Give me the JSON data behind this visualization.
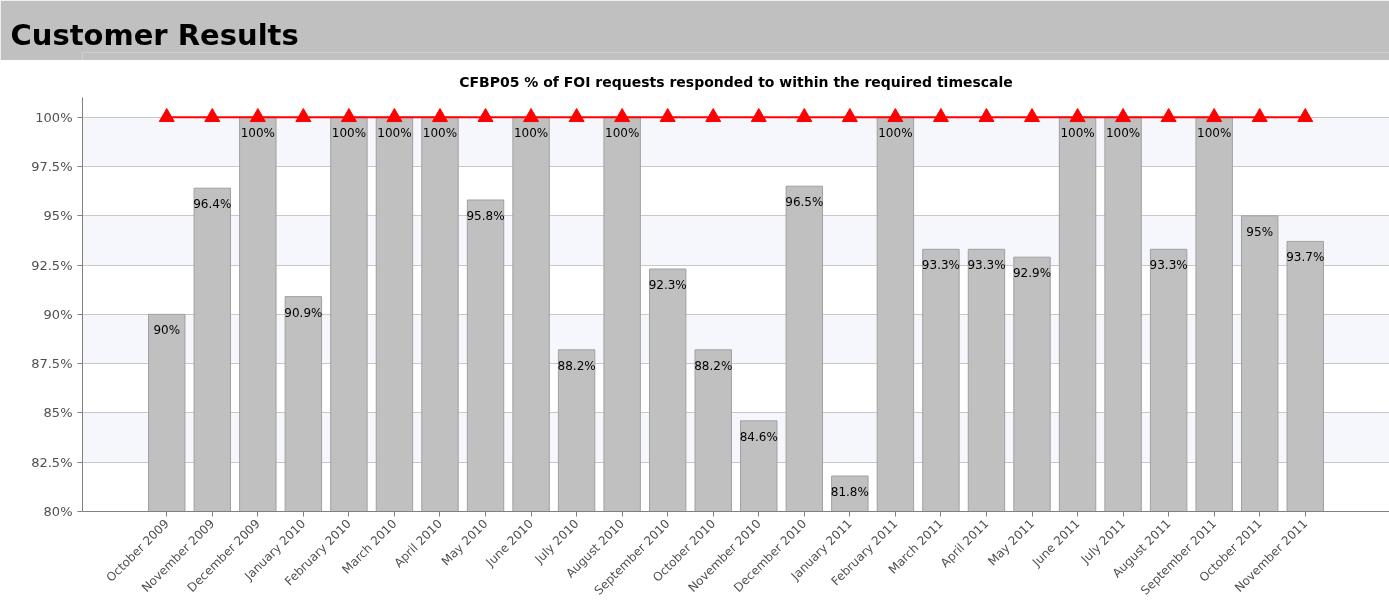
{
  "chart_data": {
    "type": "bar",
    "title": "Customer Results",
    "subtitle": "CFBP05 % of FOI requests responded to within the required timescale",
    "categories": [
      "October 2009",
      "November 2009",
      "December 2009",
      "January 2010",
      "February 2010",
      "March 2010",
      "April 2010",
      "May 2010",
      "June 2010",
      "July 2010",
      "August 2010",
      "September 2010",
      "October 2010",
      "November 2010",
      "December 2010",
      "January 2011",
      "February 2011",
      "March 2011",
      "April 2011",
      "May 2011",
      "June 2011",
      "July 2011",
      "August 2011",
      "September 2011",
      "October 2011",
      "November 2011"
    ],
    "series": [
      {
        "color": "#c0c0c0",
        "values": [
          90,
          96.4,
          100,
          90.9,
          100,
          100,
          100,
          95.8,
          100,
          88.2,
          100,
          92.3,
          88.2,
          84.6,
          96.5,
          81.8,
          100,
          93.3,
          93.3,
          92.9,
          100,
          100,
          93.3,
          100,
          95,
          93.7
        ],
        "value_labels": [
          "90%",
          "96.4%",
          "100%",
          "90.9%",
          "100%",
          "100%",
          "100%",
          "95.8%",
          "100%",
          "88.2%",
          "100%",
          "92.3%",
          "88.2%",
          "84.6%",
          "96.5%",
          "81.8%",
          "100%",
          "93.3%",
          "93.3%",
          "92.9%",
          "100%",
          "100%",
          "93.3%",
          "100%",
          "95%",
          "93.7%"
        ]
      },
      {
        "type": "line",
        "color": "#ff0000",
        "marker": "triangle",
        "values": [
          100,
          100,
          100,
          100,
          100,
          100,
          100,
          100,
          100,
          100,
          100,
          100,
          100,
          100,
          100,
          100,
          100,
          100,
          100,
          100,
          100,
          100,
          100,
          100,
          100,
          100
        ]
      }
    ],
    "ylim": [
      80,
      101
    ],
    "yticks": [
      {
        "value": 80,
        "label": "80%"
      },
      {
        "value": 82.5,
        "label": "82.5%"
      },
      {
        "value": 85,
        "label": "85%"
      },
      {
        "value": 87.5,
        "label": "87.5%"
      },
      {
        "value": 90,
        "label": "90%"
      },
      {
        "value": 92.5,
        "label": "92.5%"
      },
      {
        "value": 95,
        "label": "95%"
      },
      {
        "value": 97.5,
        "label": "97.5%"
      },
      {
        "value": 100,
        "label": "100%"
      }
    ],
    "grid": "y"
  }
}
